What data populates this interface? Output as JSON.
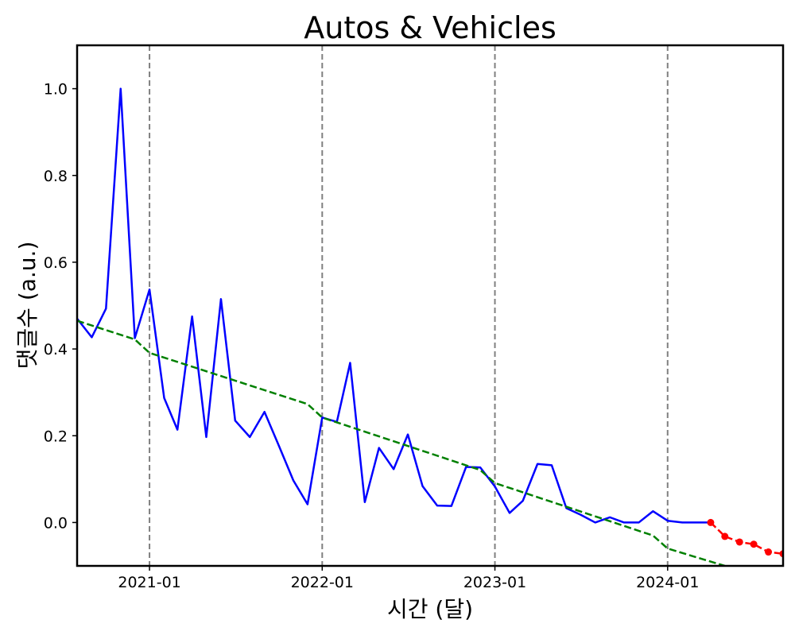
{
  "chart_data": {
    "type": "line",
    "title": "Autos & Vehicles",
    "xlabel": "시간 (달)",
    "ylabel": "댓글수 (a.u.)",
    "xlim": [
      "2020-08-01",
      "2024-09-01"
    ],
    "ylim": [
      -0.1,
      1.1
    ],
    "x_ticks": [
      "2021-01",
      "2022-01",
      "2023-01",
      "2024-01"
    ],
    "y_ticks": [
      0.0,
      0.2,
      0.4,
      0.6,
      0.8,
      1.0
    ],
    "y_tick_labels": [
      "0.0",
      "0.2",
      "0.4",
      "0.6",
      "0.8",
      "1.0"
    ],
    "vlines": [
      "2021-01",
      "2022-01",
      "2023-01",
      "2024-01"
    ],
    "grid": false,
    "series": [
      {
        "style": "solid",
        "color": "#0000ff",
        "points": [
          [
            "2020-08-01",
            0.47
          ],
          [
            "2020-09-01",
            0.427
          ],
          [
            "2020-10-01",
            0.493
          ],
          [
            "2020-11-01",
            1.0
          ],
          [
            "2020-12-01",
            0.425
          ],
          [
            "2021-01-01",
            0.537
          ],
          [
            "2021-02-01",
            0.287
          ],
          [
            "2021-03-01",
            0.214
          ],
          [
            "2021-04-01",
            0.475
          ],
          [
            "2021-05-01",
            0.197
          ],
          [
            "2021-06-01",
            0.515
          ],
          [
            "2021-07-01",
            0.235
          ],
          [
            "2021-08-01",
            0.197
          ],
          [
            "2021-09-01",
            0.255
          ],
          [
            "2021-10-01",
            0.178
          ],
          [
            "2021-11-01",
            0.097
          ],
          [
            "2021-12-01",
            0.042
          ],
          [
            "2022-01-01",
            0.242
          ],
          [
            "2022-02-01",
            0.232
          ],
          [
            "2022-03-01",
            0.368
          ],
          [
            "2022-04-01",
            0.047
          ],
          [
            "2022-05-01",
            0.172
          ],
          [
            "2022-06-01",
            0.123
          ],
          [
            "2022-07-01",
            0.203
          ],
          [
            "2022-08-01",
            0.084
          ],
          [
            "2022-09-01",
            0.039
          ],
          [
            "2022-10-01",
            0.038
          ],
          [
            "2022-11-01",
            0.128
          ],
          [
            "2022-12-01",
            0.127
          ],
          [
            "2023-01-01",
            0.083
          ],
          [
            "2023-02-01",
            0.022
          ],
          [
            "2023-03-01",
            0.05
          ],
          [
            "2023-04-01",
            0.135
          ],
          [
            "2023-05-01",
            0.132
          ],
          [
            "2023-06-01",
            0.033
          ],
          [
            "2023-07-01",
            0.018
          ],
          [
            "2023-08-01",
            0.0
          ],
          [
            "2023-09-01",
            0.012
          ],
          [
            "2023-10-01",
            0.0
          ],
          [
            "2023-11-01",
            0.0
          ],
          [
            "2023-12-01",
            0.026
          ],
          [
            "2024-01-01",
            0.004
          ],
          [
            "2024-02-01",
            0.0
          ],
          [
            "2024-03-01",
            0.0
          ],
          [
            "2024-04-01",
            0.0
          ]
        ]
      },
      {
        "style": "dashed",
        "color": "#008000",
        "points": [
          [
            "2020-08-01",
            0.465
          ],
          [
            "2020-12-01",
            0.422
          ],
          [
            "2021-01-01",
            0.391
          ],
          [
            "2021-12-01",
            0.273
          ],
          [
            "2022-01-01",
            0.242
          ],
          [
            "2022-12-01",
            0.121
          ],
          [
            "2023-01-01",
            0.091
          ],
          [
            "2023-12-01",
            -0.03
          ],
          [
            "2024-01-01",
            -0.06
          ],
          [
            "2024-05-01",
            -0.1
          ]
        ]
      },
      {
        "style": "dashed-markers",
        "color": "#ff0000",
        "points": [
          [
            "2024-04-01",
            0.0
          ],
          [
            "2024-05-01",
            -0.032
          ],
          [
            "2024-06-01",
            -0.045
          ],
          [
            "2024-07-01",
            -0.05
          ],
          [
            "2024-08-01",
            -0.068
          ],
          [
            "2024-09-01",
            -0.072
          ]
        ]
      }
    ]
  }
}
